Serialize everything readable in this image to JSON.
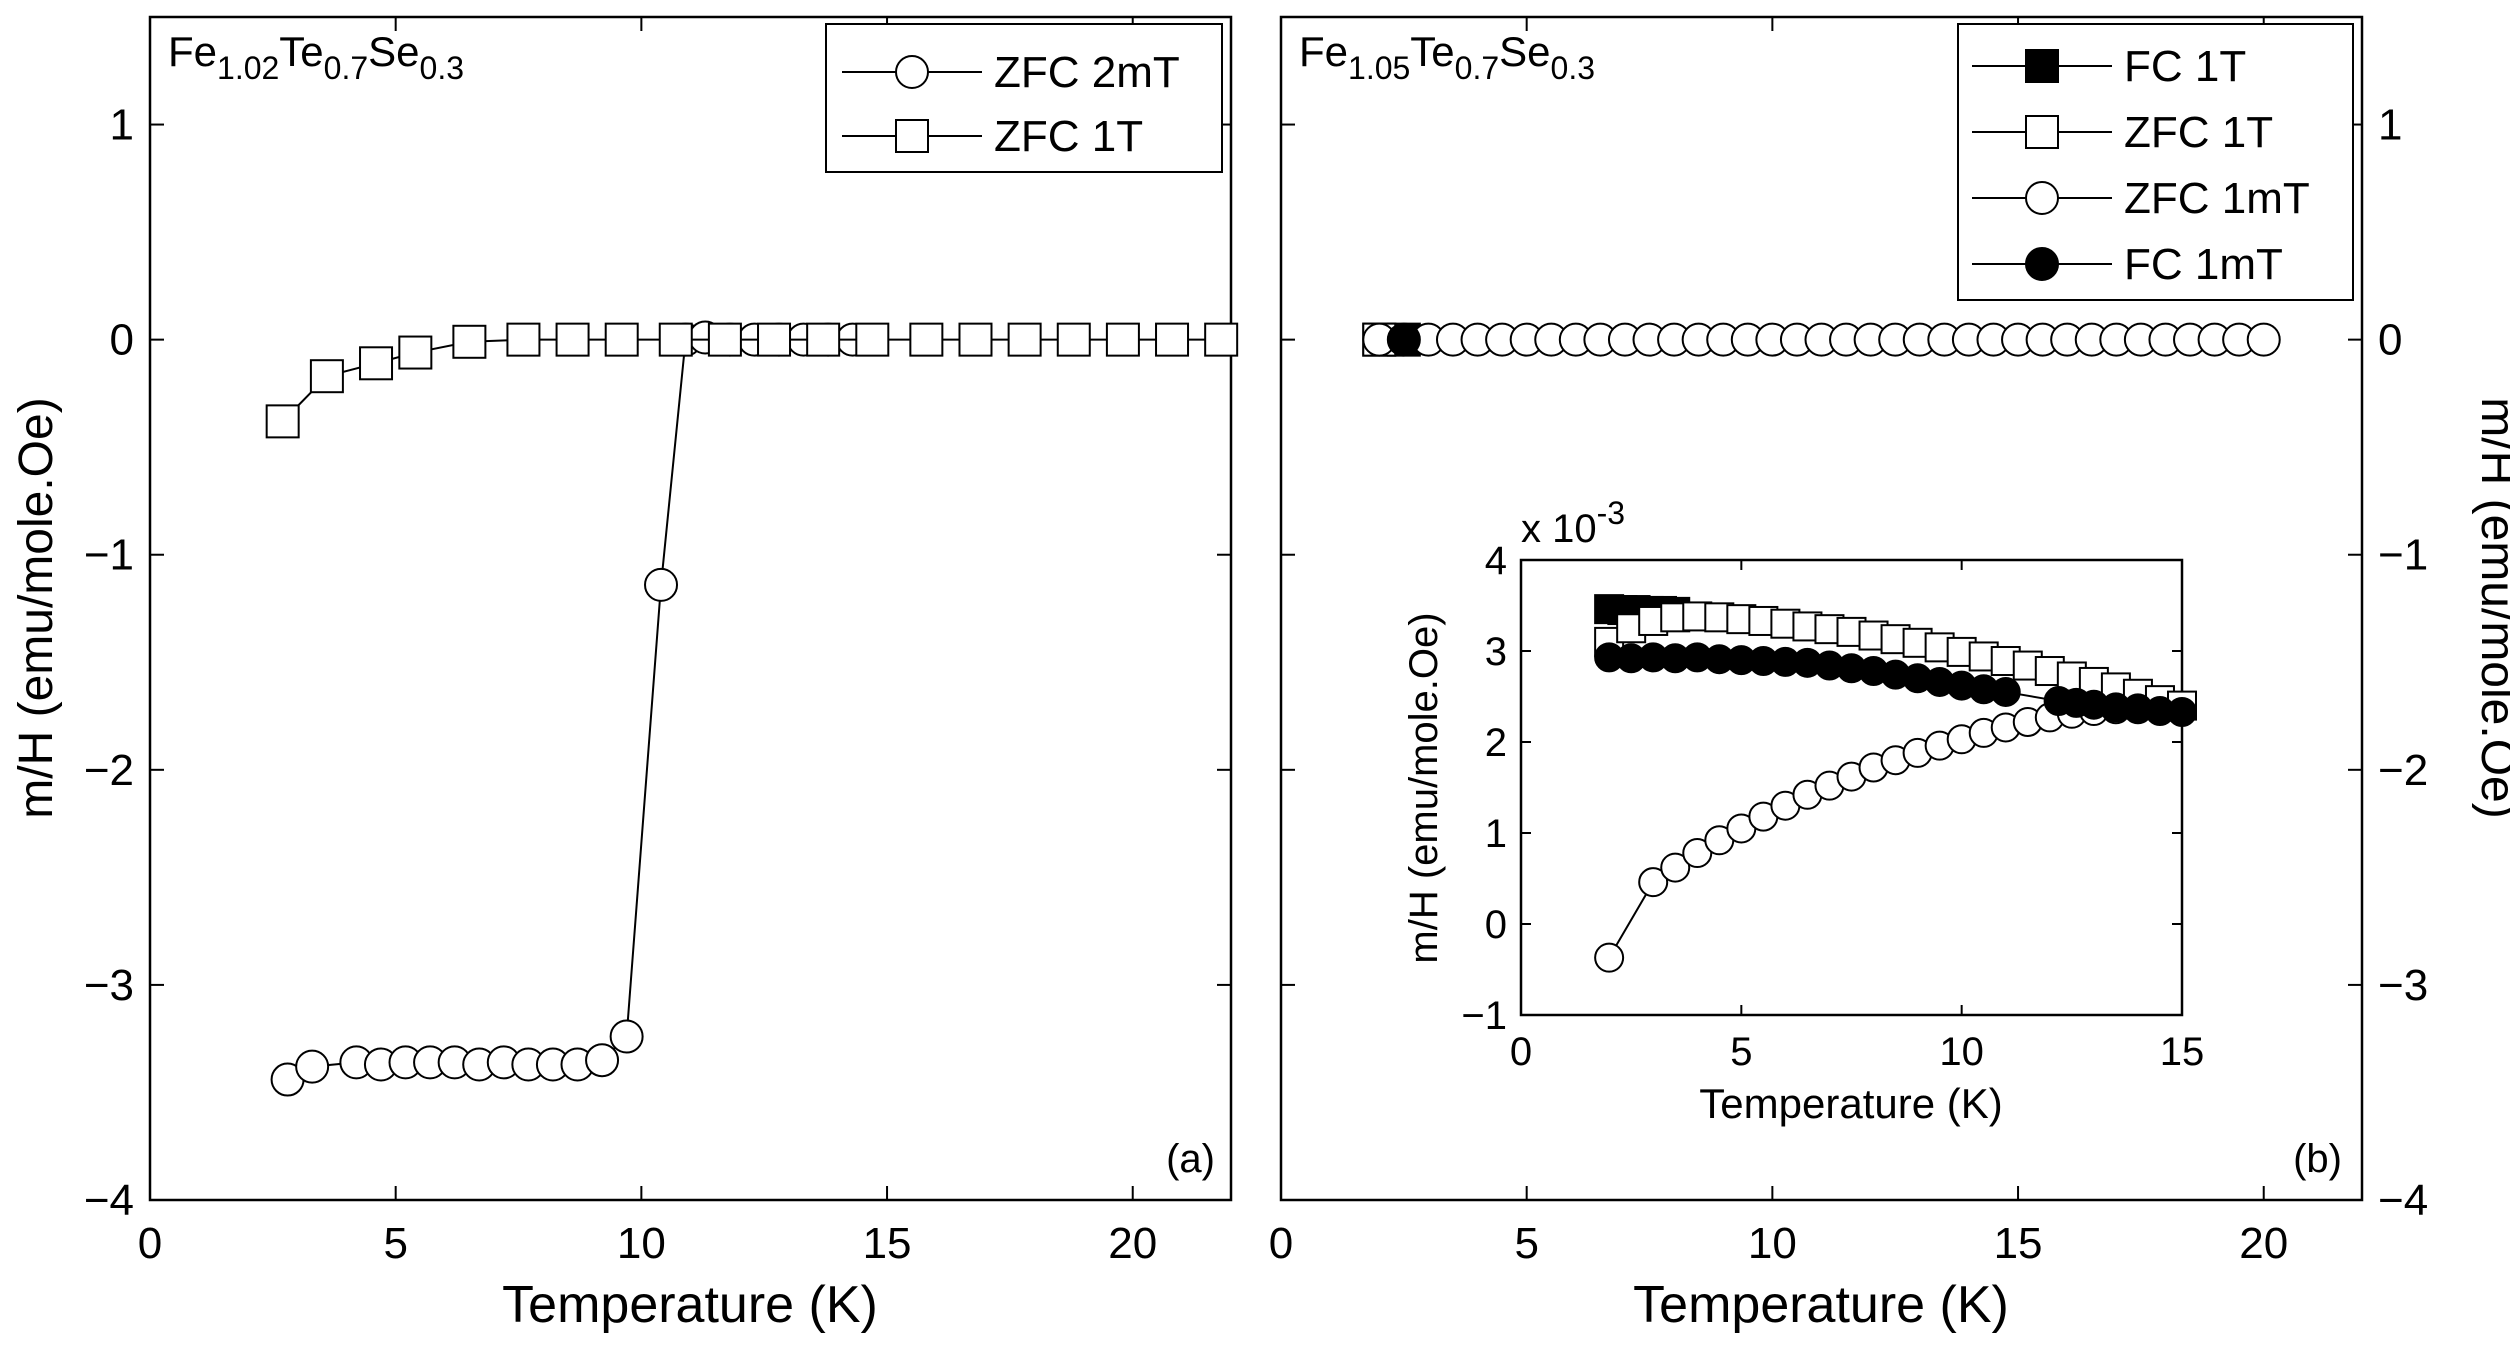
{
  "chart_data": [
    {
      "panel": "a",
      "type": "line",
      "panel_label": "(a)",
      "formula": {
        "el1": "Fe",
        "sub1": "1.02",
        "el2": "Te",
        "sub2": "0.7",
        "el3": "Se",
        "sub3": "0.3"
      },
      "xlabel": "Temperature (K)",
      "ylabel": "m/H (emu/mole.Oe)",
      "xlim": [
        0,
        22
      ],
      "ylim": [
        -4,
        1.5
      ],
      "xticks": [
        0,
        5,
        10,
        15,
        20
      ],
      "yticks": [
        -4,
        -3,
        -2,
        -1,
        0,
        1
      ],
      "legend_position": "top-right",
      "series": [
        {
          "name": "ZFC 2mT",
          "marker": "circle-open",
          "x": [
            2.8,
            3.3,
            4.2,
            4.7,
            5.2,
            5.7,
            6.2,
            6.7,
            7.2,
            7.7,
            8.2,
            8.7,
            9.2,
            9.7,
            10.4,
            10.9,
            11.3,
            11.8,
            12.3,
            12.8,
            13.3,
            13.8,
            14.3
          ],
          "y": [
            -3.44,
            -3.38,
            -3.36,
            -3.37,
            -3.36,
            -3.36,
            -3.36,
            -3.37,
            -3.36,
            -3.37,
            -3.37,
            -3.37,
            -3.35,
            -3.24,
            -1.14,
            0.0,
            0.01,
            0.0,
            0.0,
            0.0,
            0.0,
            0.0,
            0.0
          ]
        },
        {
          "name": "ZFC 1T",
          "marker": "square-open",
          "x": [
            2.7,
            3.6,
            4.6,
            5.4,
            6.5,
            7.6,
            8.6,
            9.6,
            10.7,
            11.7,
            12.7,
            13.7,
            14.7,
            15.8,
            16.8,
            17.8,
            18.8,
            19.8,
            20.8,
            21.8
          ],
          "y": [
            -0.38,
            -0.17,
            -0.11,
            -0.06,
            -0.01,
            0.0,
            0.0,
            0.0,
            0.0,
            0.0,
            0.0,
            0.0,
            0.0,
            0.0,
            0.0,
            0.0,
            0.0,
            0.0,
            0.0,
            0.0
          ]
        }
      ]
    },
    {
      "panel": "b",
      "type": "line",
      "panel_label": "(b)",
      "formula": {
        "el1": "Fe",
        "sub1": "1.05",
        "el2": "Te",
        "sub2": "0.7",
        "el3": "Se",
        "sub3": "0.3"
      },
      "xlabel": "Temperature (K)",
      "ylabel": "m/H (emu/mole.Oe)",
      "xlim": [
        0,
        22
      ],
      "ylim": [
        -4,
        1.5
      ],
      "xticks": [
        0,
        5,
        10,
        15,
        20
      ],
      "yticks": [
        -4,
        -3,
        -2,
        -1,
        0,
        1
      ],
      "legend_position": "top-right",
      "series": [
        {
          "name": "FC 1T",
          "marker": "square-filled",
          "x": [
            2.0,
            2.5
          ],
          "y": [
            0.0,
            0.0
          ]
        },
        {
          "name": "ZFC 1T",
          "marker": "square-open",
          "x": [
            2.0
          ],
          "y": [
            0.0
          ]
        },
        {
          "name": "ZFC 1mT",
          "marker": "circle-open",
          "x": [
            2.0,
            3.0,
            3.5,
            4.0,
            4.5,
            5.0,
            5.5,
            6.0,
            6.5,
            7.0,
            7.5,
            8.0,
            8.5,
            9.0,
            9.5,
            10.0,
            10.5,
            11.0,
            11.5,
            12.0,
            12.5,
            13.0,
            13.5,
            14.0,
            14.5,
            15.0,
            15.5,
            16.0,
            16.5,
            17.0,
            17.5,
            18.0,
            18.5,
            19.0,
            19.5,
            20.0
          ],
          "y": [
            0,
            0,
            0,
            0,
            0,
            0,
            0,
            0,
            0,
            0,
            0,
            0,
            0,
            0,
            0,
            0,
            0,
            0,
            0,
            0,
            0,
            0,
            0,
            0,
            0,
            0,
            0,
            0,
            0,
            0,
            0,
            0,
            0,
            0,
            0,
            0
          ]
        },
        {
          "name": "FC 1mT",
          "marker": "circle-filled",
          "x": [
            2.5
          ],
          "y": [
            0.0
          ]
        }
      ],
      "inset": {
        "xlabel": "Temperature (K)",
        "ylabel": "m/H (emu/mole.Oe)",
        "multiplier": "x 10",
        "multiplier_exp": "-3",
        "xlim": [
          0,
          15
        ],
        "ylim": [
          -1,
          4
        ],
        "xticks": [
          0,
          5,
          10,
          15
        ],
        "yticks": [
          -1,
          0,
          1,
          2,
          3,
          4
        ],
        "series": [
          {
            "name": "FC 1T",
            "marker": "square-filled",
            "x": [
              2.0,
              2.3,
              2.6,
              2.9,
              3.2,
              3.5
            ],
            "y": [
              3.46,
              3.45,
              3.45,
              3.44,
              3.44,
              3.43
            ]
          },
          {
            "name": "ZFC 1T",
            "marker": "square-open",
            "x": [
              2.0,
              2.5,
              3.0,
              3.5,
              4.0,
              4.5,
              5.0,
              5.5,
              6.0,
              6.5,
              7.0,
              7.5,
              8.0,
              8.5,
              9.0,
              9.5,
              10.0,
              10.5,
              11.0,
              11.5,
              12.0,
              12.5,
              13.0,
              13.5,
              14.0,
              14.5,
              15.0
            ],
            "y": [
              3.1,
              3.25,
              3.33,
              3.37,
              3.38,
              3.37,
              3.35,
              3.33,
              3.3,
              3.27,
              3.24,
              3.21,
              3.17,
              3.13,
              3.09,
              3.04,
              2.99,
              2.94,
              2.89,
              2.84,
              2.78,
              2.72,
              2.66,
              2.6,
              2.53,
              2.46,
              2.4
            ]
          },
          {
            "name": "ZFC 1mT",
            "marker": "circle-open",
            "x": [
              2.0,
              3.0,
              3.5,
              4.0,
              4.5,
              5.0,
              5.5,
              6.0,
              6.5,
              7.0,
              7.5,
              8.0,
              8.5,
              9.0,
              9.5,
              10.0,
              10.5,
              11.0,
              11.5,
              12.0,
              12.5,
              13.0,
              13.5,
              14.0
            ],
            "y": [
              -0.37,
              0.46,
              0.62,
              0.78,
              0.92,
              1.05,
              1.18,
              1.3,
              1.42,
              1.52,
              1.62,
              1.72,
              1.8,
              1.88,
              1.96,
              2.03,
              2.1,
              2.16,
              2.22,
              2.27,
              2.31,
              2.34,
              2.36,
              2.37
            ]
          },
          {
            "name": "FC 1mT",
            "marker": "circle-filled",
            "x": [
              2.0,
              2.5,
              3.0,
              3.5,
              4.0,
              4.5,
              5.0,
              5.5,
              6.0,
              6.5,
              7.0,
              7.5,
              8.0,
              8.5,
              9.0,
              9.5,
              10.0,
              10.5,
              11.0,
              12.2,
              12.6,
              13.0,
              13.5,
              14.0,
              14.5,
              15.0
            ],
            "y": [
              2.93,
              2.92,
              2.93,
              2.92,
              2.93,
              2.91,
              2.9,
              2.89,
              2.88,
              2.87,
              2.84,
              2.81,
              2.78,
              2.74,
              2.7,
              2.66,
              2.62,
              2.58,
              2.55,
              2.45,
              2.43,
              2.41,
              2.38,
              2.36,
              2.34,
              2.33
            ]
          }
        ]
      }
    }
  ]
}
